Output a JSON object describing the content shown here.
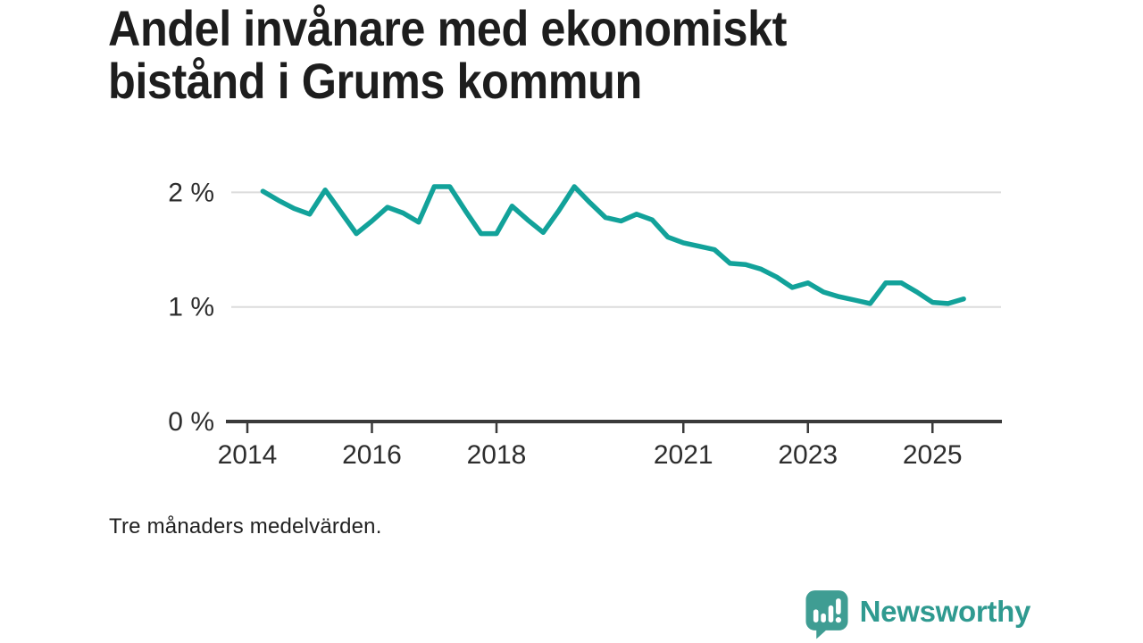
{
  "header": {
    "title": "Andel invånare med ekonomiskt bistånd i Grums kommun",
    "title_lines": [
      "Andel invånare med ekonomiskt",
      "bistånd i Grums kommun"
    ]
  },
  "footnote": "Tre månaders medelvärden.",
  "branding": {
    "wordmark": "Newsworthy",
    "icon": "newsworthy-chart-pin-icon",
    "icon_color": "#3f9d93",
    "wordmark_color": "#2f9a90"
  },
  "chart_data": {
    "type": "line",
    "title": "Andel invånare med ekonomiskt bistånd i Grums kommun",
    "note": "Tre månaders medelvärden.",
    "unit": "percent of residents",
    "xlabel": "",
    "ylabel": "",
    "legend": "none",
    "grid": "horizontal",
    "xlim": [
      2013.66,
      2026.11
    ],
    "ylim": [
      0,
      2.35
    ],
    "line_color": "#12a29a",
    "grid_color": "#dcdcdc",
    "axis_color": "#3a3a3a",
    "label_color": "#2d2d2d",
    "series": [
      {
        "name": "Andel invånare med ekonomiskt bistånd, Grums kommun",
        "x_start_year": 2014.25,
        "x_step_years": 0.25,
        "values": [
          2.01,
          1.93,
          1.86,
          1.81,
          2.02,
          1.83,
          1.64,
          1.75,
          1.87,
          1.82,
          1.74,
          2.05,
          2.05,
          1.84,
          1.64,
          1.64,
          1.88,
          1.76,
          1.65,
          1.84,
          2.05,
          1.91,
          1.78,
          1.75,
          1.81,
          1.76,
          1.61,
          1.56,
          1.53,
          1.5,
          1.38,
          1.37,
          1.33,
          1.26,
          1.17,
          1.21,
          1.13,
          1.09,
          1.06,
          1.03,
          1.21,
          1.21,
          1.13,
          1.04,
          1.03,
          1.07
        ]
      }
    ],
    "y_ticks": [
      {
        "value": 0,
        "label": "0 %"
      },
      {
        "value": 1,
        "label": "1 %"
      },
      {
        "value": 2,
        "label": "2 %"
      }
    ],
    "x_ticks": [
      {
        "year": 2014,
        "label": "2014"
      },
      {
        "year": 2016,
        "label": "2016"
      },
      {
        "year": 2018,
        "label": "2018"
      },
      {
        "year": 2021,
        "label": "2021"
      },
      {
        "year": 2023,
        "label": "2023"
      },
      {
        "year": 2025,
        "label": "2025"
      }
    ]
  }
}
